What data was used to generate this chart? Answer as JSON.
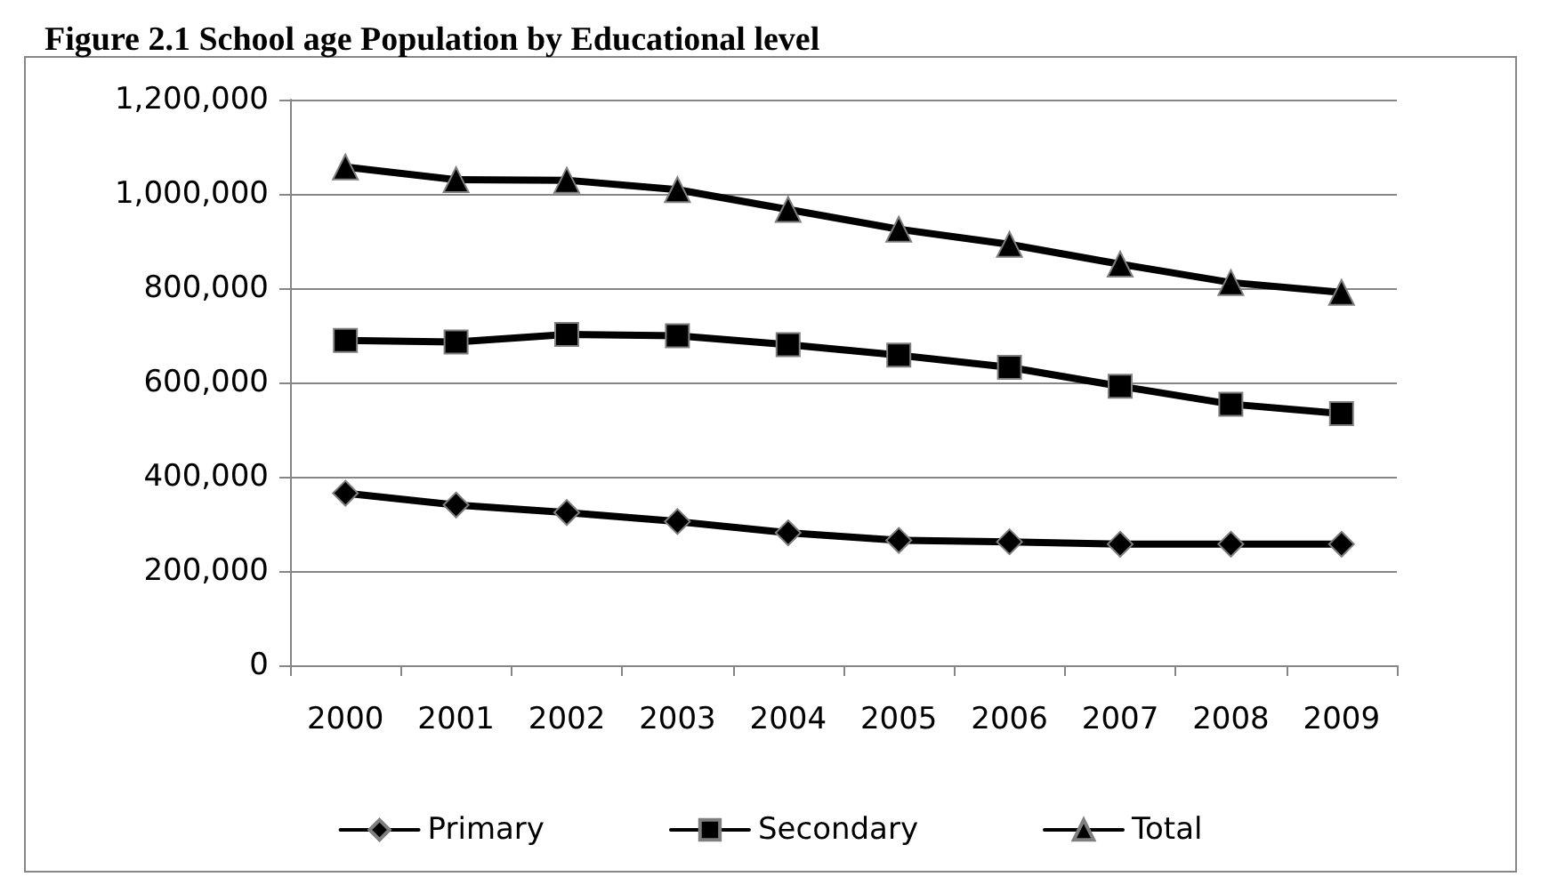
{
  "chart_data": {
    "type": "line",
    "title": "Figure 2.1 School age Population by Educational level",
    "categories": [
      "2000",
      "2001",
      "2002",
      "2003",
      "2004",
      "2005",
      "2006",
      "2007",
      "2008",
      "2009"
    ],
    "series": [
      {
        "name": "Primary",
        "color": "#000000",
        "marker": "diamond",
        "values": [
          365000,
          340000,
          324000,
          305000,
          281000,
          265000,
          262000,
          257000,
          257000,
          257000
        ]
      },
      {
        "name": "Secondary",
        "color": "#000000",
        "marker": "square",
        "values": [
          689000,
          686000,
          702000,
          699000,
          680000,
          658000,
          632000,
          592000,
          554000,
          534000
        ]
      },
      {
        "name": "Total",
        "color": "#000000",
        "marker": "triangle",
        "values": [
          1057000,
          1030000,
          1029000,
          1009000,
          967000,
          925000,
          893000,
          851000,
          812000,
          791000
        ]
      }
    ],
    "ylim": [
      0,
      1200000
    ],
    "yticks": [
      0,
      {
        "value": 200000,
        "label": "200,000"
      },
      {
        "value": 400000,
        "label": "400,000"
      },
      {
        "value": 600000,
        "label": "600,000"
      },
      {
        "value": 800000,
        "label": "800,000"
      },
      {
        "value": 1000000,
        "label": "1,000,000"
      },
      {
        "value": 1200000,
        "label": "1,200,000"
      }
    ],
    "grid": "y",
    "legend": "bottom",
    "line_style": "solid"
  }
}
